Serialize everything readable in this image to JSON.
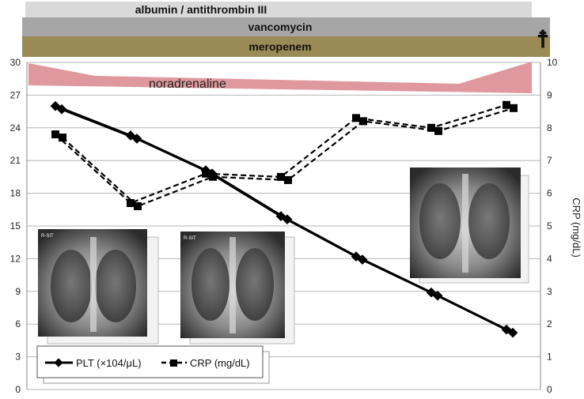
{
  "treatments": [
    {
      "label": "albumin / antithrombin III",
      "color": "#d9d9d9"
    },
    {
      "label": "vancomycin",
      "color": "#a6a6a6"
    },
    {
      "label": "meropenem",
      "color": "#9a8a55"
    },
    {
      "label": "noradrenaline",
      "color": "#d9868c"
    }
  ],
  "death_marker": "☨",
  "chart_data": {
    "type": "line",
    "xlim": [
      0,
      7
    ],
    "y_left": {
      "min": 0,
      "max": 30,
      "ticks": [
        0,
        3,
        6,
        9,
        12,
        15,
        18,
        21,
        24,
        27,
        30
      ]
    },
    "y_right": {
      "label": "CRP (mg/dL)",
      "min": 0,
      "max": 10,
      "ticks": [
        0,
        1,
        2,
        3,
        4,
        5,
        6,
        7,
        8,
        9,
        10
      ]
    },
    "grid": true,
    "series": [
      {
        "name": "PLT (×104/μL)",
        "axis": "left",
        "style": "solid",
        "x": [
          0.2,
          1.2,
          2.2,
          3.2,
          4.2,
          5.2,
          6.2
        ],
        "y": [
          26,
          23.3,
          20.1,
          15.9,
          12.2,
          8.9,
          5.5
        ]
      },
      {
        "name": "CRP (mg/dL)",
        "axis": "right",
        "style": "dashed",
        "x": [
          0.2,
          1.2,
          2.2,
          3.2,
          4.2,
          5.2,
          6.2
        ],
        "y": [
          7.8,
          5.7,
          6.6,
          6.5,
          8.3,
          8.0,
          8.7
        ]
      }
    ],
    "legend": {
      "position": "bottom-left",
      "entries": [
        "PLT (×104/μL)",
        "CRP (mg/dL)"
      ]
    },
    "insets": [
      {
        "name": "chest-xray-1",
        "tag": "R-SIT"
      },
      {
        "name": "chest-xray-2",
        "tag": "R-SIT"
      },
      {
        "name": "chest-xray-3",
        "tag": ""
      }
    ]
  }
}
